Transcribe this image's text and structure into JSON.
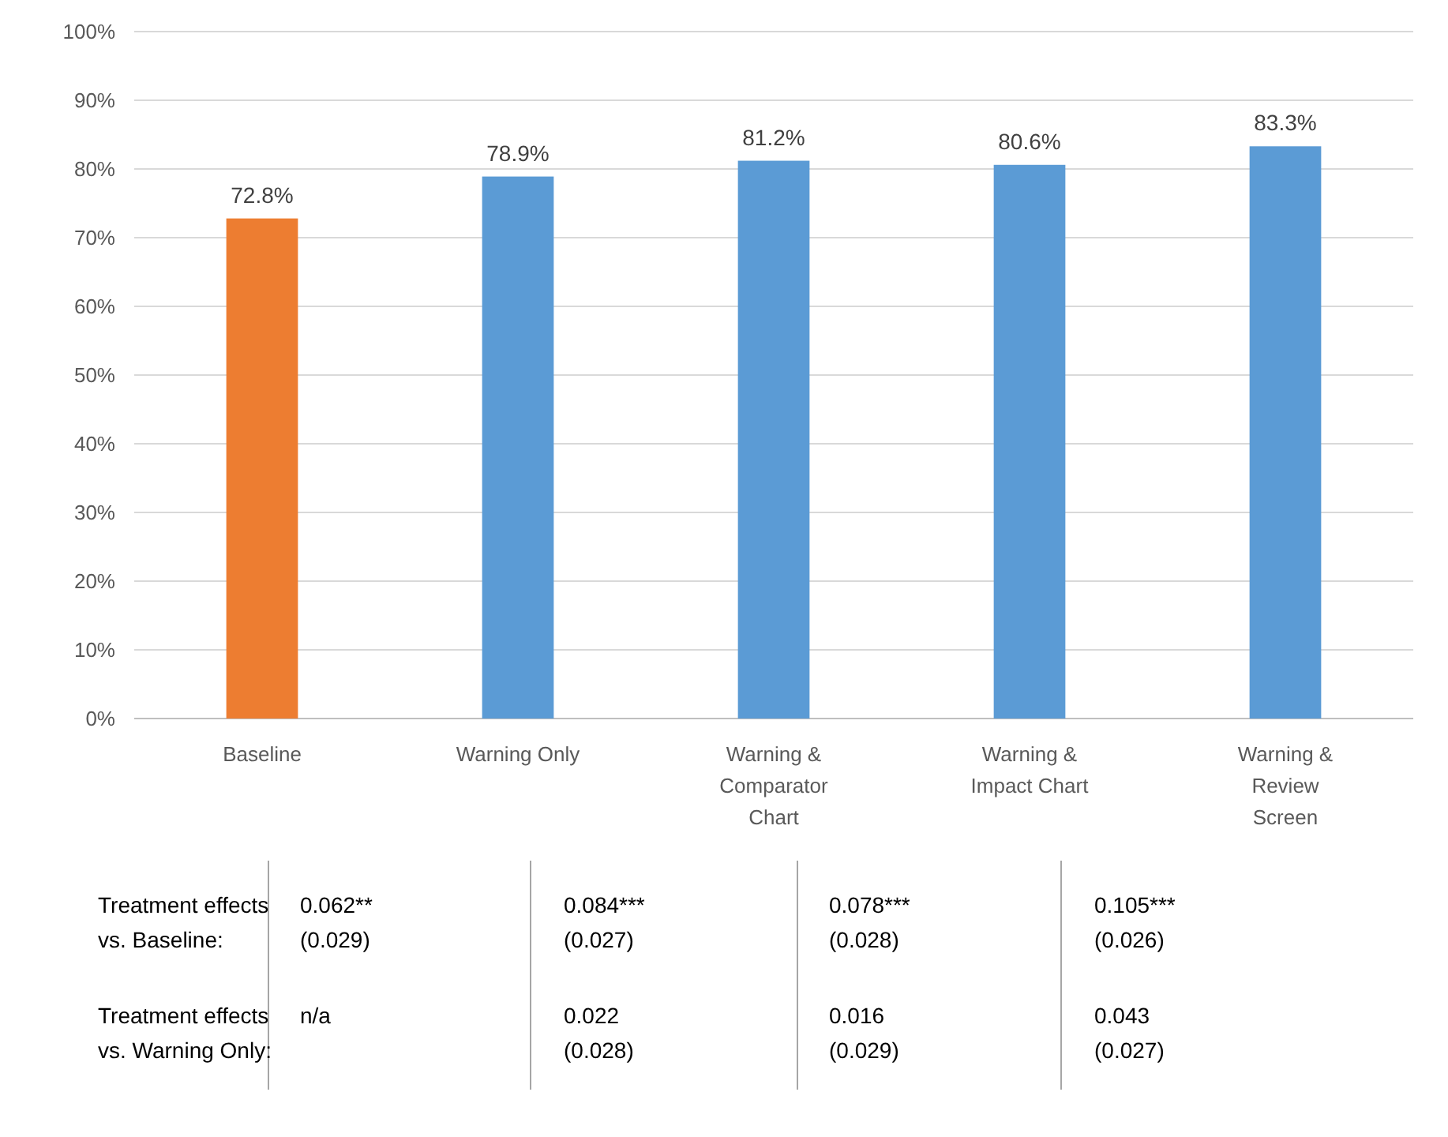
{
  "chart_data": {
    "type": "bar",
    "categories": [
      "Baseline",
      "Warning  Only",
      "Warning & Comparator Chart",
      "Warning & Impact  Chart",
      "Warning & Review Screen"
    ],
    "values": [
      72.8,
      78.9,
      81.2,
      80.6,
      83.3
    ],
    "colors": [
      "#ed7d31",
      "#5b9bd5",
      "#5b9bd5",
      "#5b9bd5",
      "#5b9bd5"
    ],
    "value_labels": [
      "72.8%",
      "78.9%",
      "81.2%",
      "80.6%",
      "83.3%"
    ],
    "ylim": [
      0,
      100
    ],
    "yticks": [
      {
        "value": 0,
        "label": "0%"
      },
      {
        "value": 10,
        "label": "10%"
      },
      {
        "value": 20,
        "label": "20%"
      },
      {
        "value": 30,
        "label": "30%"
      },
      {
        "value": 40,
        "label": "40%"
      },
      {
        "value": 50,
        "label": "50%"
      },
      {
        "value": 60,
        "label": "60%"
      },
      {
        "value": 70,
        "label": "70%"
      },
      {
        "value": 80,
        "label": "80%"
      },
      {
        "value": 90,
        "label": "90%"
      },
      {
        "value": 100,
        "label": "100%"
      }
    ],
    "grid": "y",
    "annotations": [
      "Treatment effects vs. Baseline:",
      "0.062** (0.029)",
      "0.084*** (0.027)",
      "0.078*** (0.028)",
      "0.105*** (0.026)",
      "Treatment effects vs. Warning Only:",
      "n/a",
      "0.022 (0.028)",
      "0.016 (0.029)",
      "0.043 (0.027)"
    ]
  }
}
